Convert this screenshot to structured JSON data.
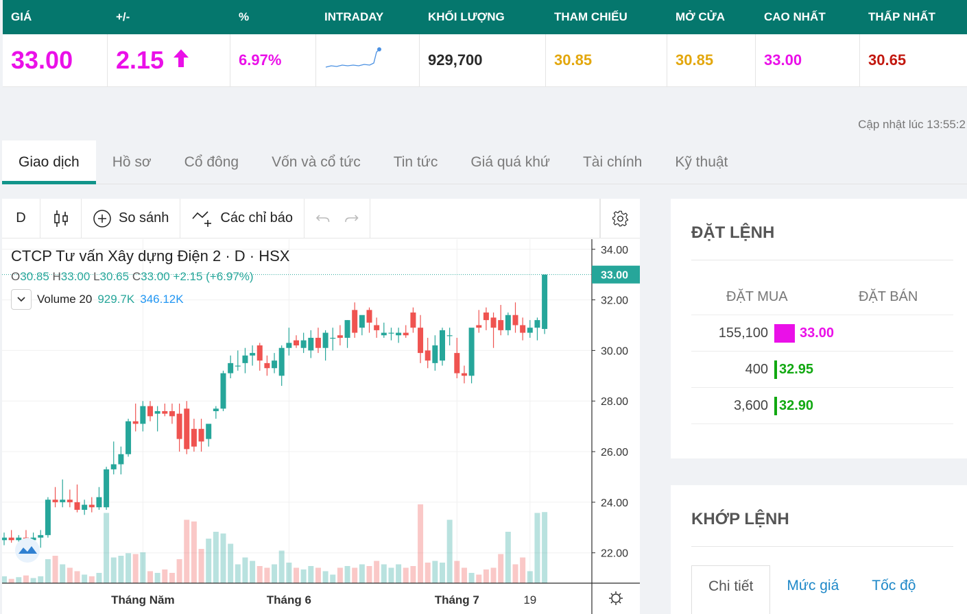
{
  "quote": {
    "headers": [
      "GIÁ",
      "+/-",
      "%",
      "INTRADAY",
      "KHỐI LƯỢNG",
      "THAM CHIẾU",
      "MỞ CỬA",
      "CAO NHẤT",
      "THẤP NHẤT"
    ],
    "price": "33.00",
    "change": "2.15",
    "percent": "6.97%",
    "volume": "929,700",
    "reference": "30.85",
    "open": "30.85",
    "high": "33.00",
    "low": "30.65"
  },
  "updated_text": "Cập nhật lúc 13:55:2",
  "tabs": [
    "Giao dịch",
    "Hồ sơ",
    "Cổ đông",
    "Vốn và cổ tức",
    "Tin tức",
    "Giá quá khứ",
    "Tài chính",
    "Kỹ thuật"
  ],
  "toolbar": {
    "interval": "D",
    "compare": "So sánh",
    "indicators": "Các chỉ báo"
  },
  "chart_legend": {
    "title": "CTCP Tư vấn Xây dựng Điện 2 · D · HSX",
    "o_label": "O",
    "o": "30.85",
    "h_label": "H",
    "h": "33.00",
    "l_label": "L",
    "l": "30.65",
    "c_label": "C",
    "c": "33.00",
    "change": "+2.15 (+6.97%)",
    "volume_label": "Volume 20",
    "volume_value": "929.7K",
    "volume_ma": "346.12K"
  },
  "chart_data": {
    "type": "candlestick",
    "y_ticks": [
      "34.00",
      "32.00",
      "30.00",
      "28.00",
      "26.00",
      "24.00",
      "22.00"
    ],
    "ylim": [
      20.8,
      34.4
    ],
    "last_price_label": "33.00",
    "x_ticks": [
      {
        "label": "Tháng Năm",
        "index": 19
      },
      {
        "label": "Tháng 6",
        "index": 39
      },
      {
        "label": "Tháng 7",
        "index": 62
      },
      {
        "label": "19",
        "index": 72
      }
    ],
    "candles": [
      [
        22.5,
        22.8,
        22.3,
        22.6
      ],
      [
        22.6,
        22.9,
        22.4,
        22.5
      ],
      [
        22.5,
        22.7,
        22.2,
        22.6
      ],
      [
        22.6,
        22.9,
        22.4,
        22.5
      ],
      [
        22.5,
        22.8,
        22.3,
        22.6
      ],
      [
        22.6,
        22.9,
        22.2,
        22.7
      ],
      [
        22.7,
        24.2,
        22.6,
        24.1
      ],
      [
        24.1,
        24.6,
        23.8,
        24.0
      ],
      [
        24.0,
        24.9,
        23.8,
        24.1
      ],
      [
        24.1,
        24.5,
        23.8,
        24.0
      ],
      [
        24.0,
        24.7,
        23.6,
        23.7
      ],
      [
        23.7,
        24.1,
        23.5,
        23.9
      ],
      [
        23.9,
        24.2,
        23.6,
        23.8
      ],
      [
        23.8,
        24.6,
        23.7,
        24.2
      ],
      [
        23.8,
        25.4,
        23.7,
        25.3
      ],
      [
        25.3,
        26.4,
        25.1,
        25.5
      ],
      [
        25.5,
        26.2,
        25.1,
        25.9
      ],
      [
        25.9,
        27.3,
        25.8,
        27.2
      ],
      [
        27.2,
        27.9,
        26.8,
        27.1
      ],
      [
        27.1,
        28.0,
        26.8,
        27.8
      ],
      [
        27.8,
        28.0,
        27.2,
        27.4
      ],
      [
        27.5,
        27.8,
        26.8,
        27.6
      ],
      [
        27.6,
        27.9,
        27.4,
        27.5
      ],
      [
        27.6,
        27.9,
        27.1,
        27.4
      ],
      [
        27.5,
        27.9,
        26.0,
        26.5
      ],
      [
        27.7,
        28.0,
        25.9,
        26.1
      ],
      [
        26.9,
        27.3,
        26.0,
        26.2
      ],
      [
        26.9,
        27.3,
        26.0,
        26.4
      ],
      [
        26.5,
        27.0,
        26.2,
        27.1
      ],
      [
        27.6,
        27.8,
        27.3,
        27.7
      ],
      [
        27.7,
        29.2,
        27.6,
        29.1
      ],
      [
        29.1,
        29.8,
        28.9,
        29.5
      ],
      [
        29.4,
        30.0,
        29.2,
        29.4
      ],
      [
        29.5,
        30.1,
        29.1,
        29.8
      ],
      [
        29.8,
        30.2,
        29.4,
        29.9
      ],
      [
        30.2,
        30.3,
        29.2,
        29.6
      ],
      [
        29.5,
        29.8,
        29.0,
        29.3
      ],
      [
        29.3,
        29.9,
        29.1,
        29.6
      ],
      [
        29.0,
        30.2,
        28.6,
        30.1
      ],
      [
        30.1,
        30.9,
        29.8,
        30.3
      ],
      [
        30.4,
        30.6,
        30.1,
        30.2
      ],
      [
        30.1,
        30.7,
        29.9,
        30.4
      ],
      [
        30.0,
        30.8,
        29.7,
        30.5
      ],
      [
        30.5,
        30.9,
        29.9,
        30.1
      ],
      [
        30.1,
        30.8,
        29.6,
        30.7
      ],
      [
        30.5,
        30.9,
        30.0,
        30.5
      ],
      [
        30.6,
        31.0,
        30.2,
        30.5
      ],
      [
        30.5,
        31.2,
        30.1,
        31.2
      ],
      [
        31.6,
        31.9,
        30.5,
        30.7
      ],
      [
        30.9,
        31.3,
        30.6,
        31.4
      ],
      [
        31.6,
        31.7,
        30.7,
        31.1
      ],
      [
        31.0,
        31.3,
        30.5,
        30.8
      ],
      [
        30.6,
        31.1,
        30.5,
        30.7
      ],
      [
        30.7,
        30.9,
        30.4,
        30.7
      ],
      [
        30.6,
        30.9,
        30.3,
        30.7
      ],
      [
        30.7,
        31.0,
        30.5,
        30.6
      ],
      [
        31.5,
        31.7,
        30.7,
        30.9
      ],
      [
        30.9,
        31.4,
        29.5,
        29.9
      ],
      [
        30.0,
        30.5,
        29.3,
        29.6
      ],
      [
        29.5,
        30.6,
        29.2,
        30.2
      ],
      [
        29.6,
        30.9,
        29.4,
        30.8
      ],
      [
        30.6,
        30.9,
        30.2,
        30.6
      ],
      [
        29.9,
        30.5,
        28.9,
        29.1
      ],
      [
        29.1,
        29.4,
        28.7,
        29.0
      ],
      [
        29.0,
        30.8,
        28.7,
        30.9
      ],
      [
        31.0,
        31.6,
        30.7,
        30.9
      ],
      [
        31.5,
        31.7,
        30.8,
        31.2
      ],
      [
        31.3,
        31.5,
        30.1,
        30.9
      ],
      [
        31.2,
        31.8,
        30.6,
        30.8
      ],
      [
        30.8,
        31.5,
        30.6,
        31.4
      ],
      [
        31.4,
        31.9,
        30.7,
        31.0
      ],
      [
        31.0,
        31.3,
        30.4,
        30.7
      ],
      [
        30.7,
        31.2,
        30.5,
        30.9
      ],
      [
        30.9,
        31.3,
        30.4,
        31.2
      ]
    ],
    "volume_levels": [
      0.08,
      0.05,
      0.07,
      0.09,
      0.06,
      0.08,
      0.28,
      0.32,
      0.22,
      0.18,
      0.14,
      0.1,
      0.08,
      0.12,
      0.82,
      0.3,
      0.32,
      0.35,
      0.34,
      0.36,
      0.14,
      0.12,
      0.16,
      0.12,
      0.28,
      0.74,
      0.72,
      0.4,
      0.52,
      0.6,
      0.58,
      0.46,
      0.22,
      0.3,
      0.26,
      0.2,
      0.18,
      0.22,
      0.38,
      0.24,
      0.18,
      0.16,
      0.2,
      0.18,
      0.14,
      0.1,
      0.18,
      0.2,
      0.18,
      0.22,
      0.2,
      0.26,
      0.22,
      0.18,
      0.22,
      0.18,
      0.2,
      0.92,
      0.24,
      0.26,
      0.24,
      0.74,
      0.26,
      0.18,
      0.12,
      0.1,
      0.16,
      0.18,
      0.34,
      0.6,
      0.22,
      0.3,
      0.14,
      0.82
    ],
    "last_candle": [
      30.85,
      33.0,
      30.65,
      33.0
    ],
    "last_volume": 929700,
    "up_color": "#26a69a",
    "down_color": "#ef5350"
  },
  "order": {
    "title": "ĐẶT LỆNH",
    "buy_header": "ĐẶT MUA",
    "sell_header": "ĐẶT BÁN",
    "rows": [
      {
        "qty": "155,100",
        "price": "33.00",
        "color": "#ea10e8"
      },
      {
        "qty": "400",
        "price": "32.95",
        "color": "#11a811"
      },
      {
        "qty": "3,600",
        "price": "32.90",
        "color": "#11a811"
      }
    ]
  },
  "match": {
    "title": "KHỚP LỆNH",
    "tabs": [
      "Chi tiết",
      "Mức giá",
      "Tốc độ"
    ]
  }
}
